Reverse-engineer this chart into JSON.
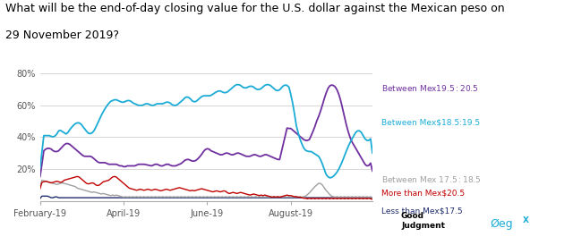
{
  "title_line1": "What will be the end-of-day closing value for the U.S. dollar against the Mexican peso on",
  "title_line2": "29 November 2019?",
  "title_fontsize": 9.0,
  "background_color": "#ffffff",
  "grid_color": "#d0d0d0",
  "line_colors": {
    "blue": "#1bacd6",
    "purple": "#7030a0",
    "red": "#c00000",
    "gray": "#a0a0a0",
    "navy": "#1f2d6e"
  },
  "legend_labels": [
    "Between Mex$19.5:$20.5",
    "Between Mex$18.5:19.5",
    "Between Mex $17.5:$18.5",
    "More than Mex$20.5",
    "Less than Mex$17.5"
  ],
  "legend_colors": [
    "#7030a0",
    "#1bacd6",
    "#a0a0a0",
    "#c00000",
    "#1f2d6e"
  ],
  "xtick_labels": [
    "February-19",
    "April-19",
    "June-19",
    "August-19"
  ],
  "n_points": 180,
  "blue_line": [
    42,
    41,
    40,
    41,
    42,
    41,
    40,
    39,
    41,
    43,
    45,
    47,
    42,
    40,
    42,
    44,
    46,
    47,
    48,
    49,
    50,
    49,
    48,
    46,
    44,
    43,
    42,
    41,
    43,
    45,
    47,
    50,
    53,
    55,
    57,
    59,
    61,
    62,
    63,
    64,
    63,
    64,
    63,
    62,
    61,
    62,
    63,
    64,
    63,
    62,
    61,
    60,
    61,
    60,
    59,
    60,
    61,
    62,
    61,
    60,
    59,
    60,
    61,
    62,
    61,
    60,
    61,
    62,
    63,
    62,
    61,
    60,
    59,
    60,
    61,
    62,
    63,
    64,
    65,
    67,
    65,
    63,
    61,
    62,
    63,
    64,
    65,
    66,
    67,
    66,
    65,
    66,
    67,
    67,
    68,
    69,
    70,
    69,
    68,
    67,
    68,
    69,
    70,
    71,
    72,
    73,
    74,
    73,
    72,
    71,
    70,
    71,
    72,
    73,
    72,
    71,
    70,
    69,
    70,
    71,
    72,
    73,
    74,
    73,
    72,
    71,
    70,
    69,
    68,
    70,
    72,
    74,
    73,
    72,
    71,
    70,
    55,
    50,
    44,
    40,
    37,
    34,
    32,
    30,
    31,
    32,
    31,
    30,
    28,
    29,
    28,
    27,
    20,
    18,
    15,
    14,
    14,
    15,
    16,
    17,
    19,
    21,
    24,
    27,
    30,
    33,
    36,
    38,
    40,
    42,
    44,
    46,
    44,
    42,
    40,
    38,
    36,
    38,
    40,
    42
  ],
  "purple_line": [
    30,
    31,
    32,
    33,
    34,
    33,
    32,
    31,
    30,
    31,
    32,
    33,
    35,
    36,
    37,
    36,
    35,
    34,
    33,
    32,
    31,
    30,
    29,
    28,
    27,
    28,
    29,
    28,
    27,
    26,
    25,
    24,
    23,
    24,
    25,
    24,
    23,
    22,
    23,
    24,
    23,
    22,
    23,
    22,
    21,
    22,
    21,
    22,
    23,
    22,
    21,
    22,
    23,
    24,
    23,
    22,
    23,
    24,
    22,
    21,
    22,
    23,
    24,
    23,
    22,
    21,
    22,
    23,
    24,
    23,
    22,
    21,
    22,
    23,
    22,
    23,
    24,
    25,
    26,
    27,
    26,
    25,
    24,
    25,
    26,
    27,
    28,
    30,
    32,
    34,
    33,
    32,
    31,
    30,
    31,
    30,
    29,
    28,
    29,
    30,
    31,
    30,
    29,
    28,
    29,
    30,
    31,
    30,
    29,
    28,
    29,
    28,
    27,
    28,
    29,
    30,
    29,
    28,
    27,
    28,
    29,
    30,
    29,
    28,
    27,
    28,
    27,
    26,
    25,
    26,
    27,
    46,
    44,
    47,
    46,
    45,
    44,
    43,
    42,
    41,
    40,
    39,
    38,
    37,
    38,
    39,
    40,
    47,
    49,
    51,
    54,
    58,
    62,
    66,
    70,
    72,
    74,
    73,
    72,
    71,
    70,
    65,
    60,
    55,
    50,
    45,
    40,
    38,
    36,
    34,
    32,
    30,
    28,
    26,
    24,
    22,
    20,
    22,
    25,
    28
  ],
  "red_line": [
    12,
    11,
    12,
    13,
    12,
    11,
    12,
    11,
    12,
    13,
    12,
    11,
    12,
    13,
    14,
    13,
    14,
    15,
    14,
    15,
    16,
    15,
    14,
    13,
    12,
    11,
    10,
    11,
    12,
    11,
    10,
    9,
    10,
    11,
    12,
    13,
    12,
    13,
    14,
    15,
    16,
    15,
    14,
    13,
    12,
    11,
    10,
    9,
    8,
    7,
    8,
    7,
    6,
    7,
    8,
    7,
    6,
    7,
    8,
    7,
    6,
    7,
    8,
    7,
    6,
    7,
    6,
    7,
    8,
    7,
    6,
    7,
    8,
    7,
    8,
    9,
    8,
    7,
    8,
    7,
    6,
    7,
    6,
    7,
    6,
    7,
    8,
    7,
    8,
    7,
    6,
    7,
    6,
    5,
    6,
    7,
    6,
    5,
    6,
    7,
    6,
    5,
    4,
    5,
    6,
    5,
    4,
    5,
    6,
    5,
    4,
    5,
    4,
    3,
    4,
    5,
    4,
    3,
    4,
    3,
    4,
    3,
    4,
    3,
    2,
    3,
    2,
    3,
    2,
    3,
    2,
    3,
    4,
    3,
    4,
    3,
    3,
    3,
    2,
    3,
    2,
    2,
    2,
    1,
    2,
    1,
    2,
    1,
    2,
    1,
    2,
    1,
    2,
    1,
    2,
    1,
    2,
    1,
    2,
    1,
    2,
    1,
    2,
    1,
    2,
    1,
    2,
    1,
    2,
    1,
    2,
    1,
    2,
    1,
    2,
    1,
    2,
    1,
    2,
    1
  ],
  "gray_line": [
    14,
    13,
    12,
    13,
    12,
    11,
    12,
    11,
    10,
    11,
    10,
    11,
    12,
    11,
    10,
    11,
    10,
    9,
    10,
    9,
    8,
    7,
    8,
    7,
    6,
    7,
    6,
    5,
    6,
    5,
    6,
    5,
    4,
    5,
    4,
    5,
    4,
    3,
    4,
    3,
    4,
    3,
    4,
    3,
    2,
    3,
    2,
    3,
    2,
    3,
    2,
    3,
    2,
    3,
    2,
    3,
    2,
    3,
    2,
    3,
    2,
    3,
    2,
    3,
    2,
    3,
    2,
    3,
    2,
    3,
    2,
    3,
    2,
    3,
    2,
    3,
    2,
    3,
    2,
    3,
    2,
    3,
    2,
    3,
    2,
    3,
    2,
    3,
    2,
    3,
    2,
    3,
    2,
    3,
    2,
    3,
    2,
    3,
    2,
    3,
    2,
    3,
    2,
    3,
    2,
    3,
    2,
    3,
    2,
    3,
    2,
    3,
    2,
    3,
    2,
    3,
    2,
    3,
    2,
    3,
    2,
    3,
    2,
    3,
    2,
    3,
    2,
    3,
    2,
    3,
    2,
    3,
    2,
    3,
    2,
    3,
    2,
    3,
    2,
    3,
    2,
    3,
    2,
    3,
    4,
    5,
    6,
    8,
    9,
    10,
    11,
    12,
    10,
    8,
    7,
    5,
    4,
    3,
    2,
    3,
    2,
    3,
    2,
    3,
    2,
    3,
    2,
    3,
    2,
    3,
    2,
    3,
    2,
    3,
    2,
    3,
    2,
    3,
    2,
    3
  ],
  "navy_line": [
    3,
    3,
    3,
    3,
    3,
    2,
    2,
    2,
    3,
    2,
    2,
    2,
    2,
    2,
    2,
    2,
    2,
    2,
    2,
    2,
    2,
    2,
    2,
    2,
    2,
    2,
    2,
    2,
    2,
    2,
    2,
    2,
    2,
    2,
    2,
    2,
    2,
    2,
    2,
    2,
    2,
    2,
    2,
    2,
    2,
    2,
    2,
    2,
    2,
    2,
    2,
    2,
    2,
    2,
    2,
    2,
    2,
    2,
    2,
    2,
    2,
    2,
    2,
    2,
    2,
    2,
    2,
    2,
    2,
    2,
    2,
    2,
    2,
    2,
    2,
    2,
    2,
    2,
    2,
    2,
    2,
    2,
    2,
    2,
    2,
    2,
    2,
    2,
    2,
    2,
    2,
    2,
    2,
    2,
    2,
    2,
    2,
    2,
    2,
    2,
    2,
    2,
    2,
    2,
    2,
    2,
    2,
    2,
    2,
    2,
    2,
    2,
    2,
    2,
    2,
    2,
    2,
    2,
    2,
    2,
    2,
    2,
    2,
    2,
    2,
    2,
    2,
    2,
    2,
    2,
    2,
    2,
    2,
    2,
    2,
    2,
    2,
    2,
    2,
    2,
    2,
    2,
    2,
    2,
    2,
    2,
    2,
    2,
    2,
    2,
    2,
    2,
    2,
    2,
    2,
    2,
    2,
    2,
    2,
    2,
    2,
    2,
    2,
    2,
    2,
    2,
    2,
    2,
    2,
    2,
    2,
    2,
    2,
    2,
    2,
    2,
    2,
    2,
    2,
    2
  ]
}
